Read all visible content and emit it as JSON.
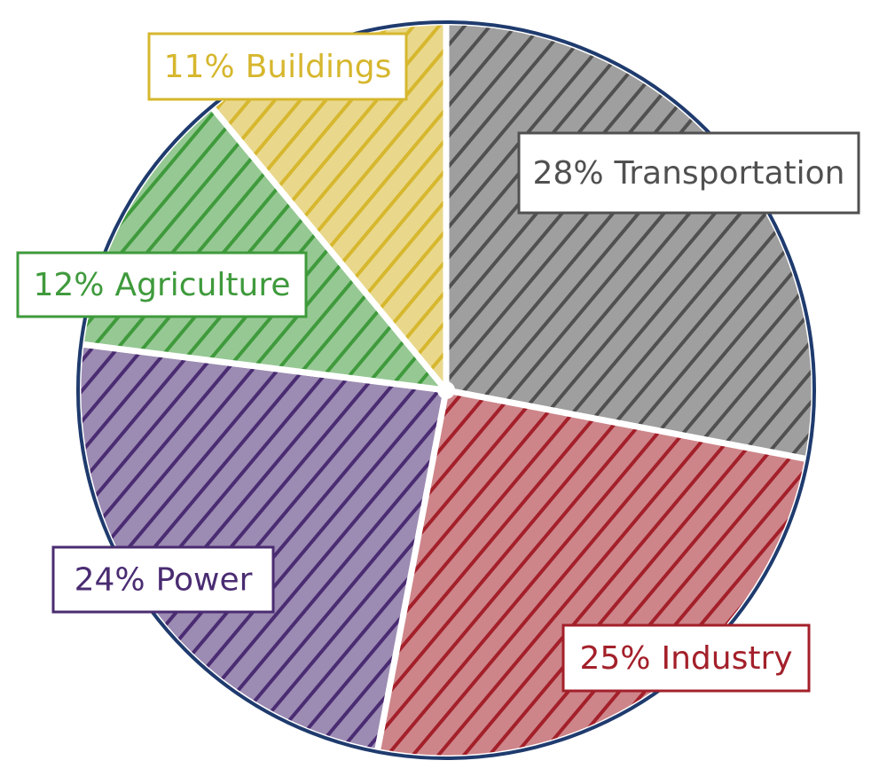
{
  "chart_data": {
    "type": "pie",
    "categories": [
      "Transportation",
      "Industry",
      "Power",
      "Agriculture",
      "Buildings"
    ],
    "values": [
      28,
      25,
      24,
      12,
      11
    ],
    "value_labels": [
      "28%",
      "25%",
      "24%",
      "12%",
      "11%"
    ],
    "colors": [
      "#505050",
      "#a3202a",
      "#4a2c72",
      "#3f9a3c",
      "#d6b72e"
    ]
  }
}
